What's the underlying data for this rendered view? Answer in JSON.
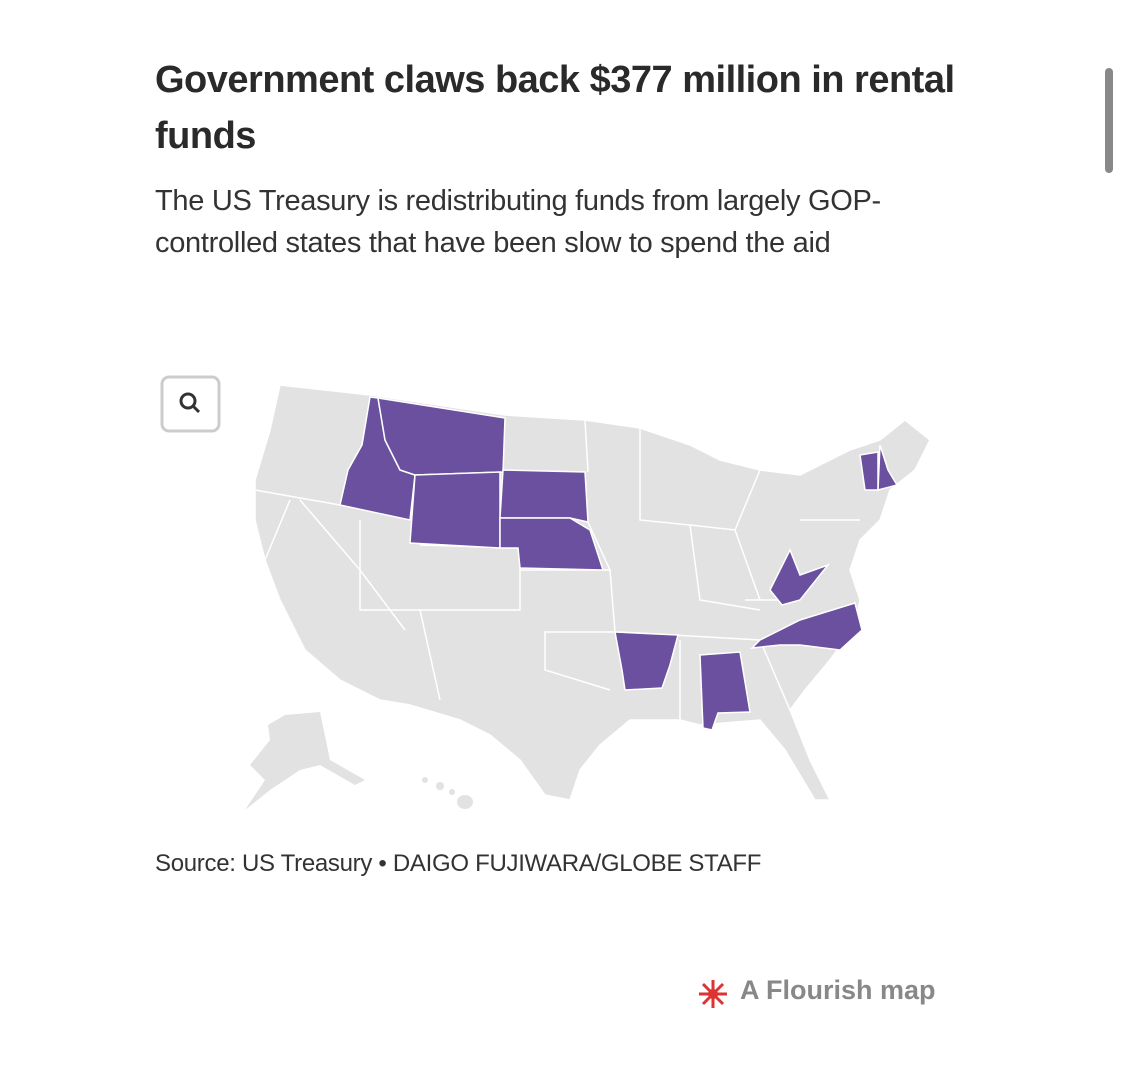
{
  "header": {
    "title": "Government claws back $377 million in rental funds",
    "subtitle": "The US Treasury is redistributing funds from largely GOP-controlled states that have been slow to spend the aid"
  },
  "footer": {
    "source": "Source: US Treasury • DAIGO FUJIWARA/GLOBE STAFF",
    "credit": "A Flourish map"
  }
}
